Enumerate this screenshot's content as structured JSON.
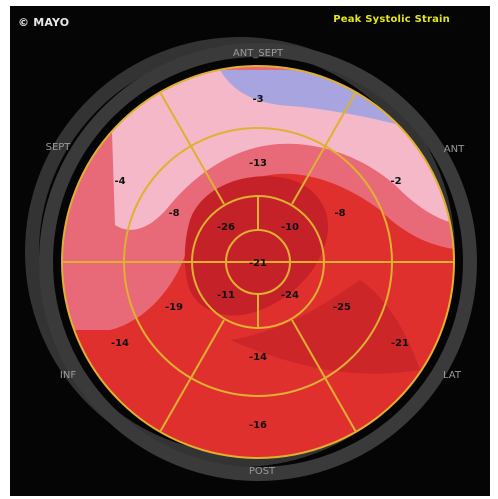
{
  "header": {
    "copyright": "© MAYO",
    "title": "Peak Systolic Strain"
  },
  "walls": {
    "ant_sept": "ANT_SEPT",
    "ant": "ANT",
    "sept": "SEPT",
    "inf": "INF",
    "lat": "LAT",
    "post": "POST"
  },
  "segments": {
    "basal": [
      "-3",
      "-2",
      "-21",
      "-16",
      "-14",
      "-4"
    ],
    "mid": [
      "-13",
      "-8",
      "-25",
      "-14",
      "-19",
      "-8"
    ],
    "apical": [
      "-26",
      "-10",
      "-24",
      "-11"
    ],
    "apex": "-21"
  },
  "colors": {
    "background": "#050505",
    "title": "#e6e61a",
    "grid_lines": "#e0b030",
    "ring": "#3a3a3a",
    "strain_low": "#f4b8c8",
    "strain_mid": "#e86a78",
    "strain_high": "#e0302e",
    "strain_very_high": "#c42228",
    "lavender": "#a8a4e0"
  }
}
